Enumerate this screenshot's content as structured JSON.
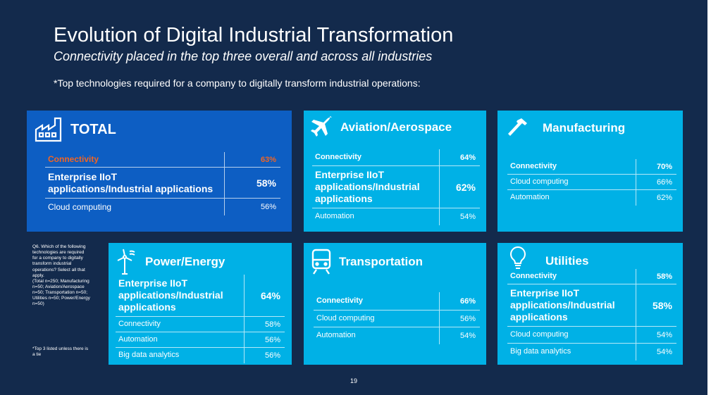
{
  "slide": {
    "title": "Evolution of Digital Industrial Transformation",
    "subtitle": "Connectivity placed in the top three overall and across all industries",
    "intro": "*Top technologies required for a company to digitally transform industrial operations:",
    "page_number": "19",
    "colors": {
      "background": "#132a4c",
      "card": "#00b1e6",
      "total_card": "#0d5ec3",
      "highlight": "#f26522"
    }
  },
  "footnote": {
    "text": "Q6. Which of the following technologies are required for a company to digitally transform industrial operations? Select all that apply.\n(Total n=250; Manufacturing n=50; Aviation/Aerospace n=50; Transportation n=50; Utilities n=50; Power/Energy n=50)",
    "tie_note": "*Top 3 listed unless there is a tie"
  },
  "cards": {
    "total": {
      "title": "TOTAL",
      "icon": "factory-icon",
      "rows": [
        {
          "name": "Connectivity",
          "value": "63%"
        },
        {
          "name": "Enterprise IIoT applications/Industrial applications",
          "value": "58%"
        },
        {
          "name": "Cloud computing",
          "value": "56%"
        }
      ]
    },
    "aviation": {
      "title": "Aviation/Aerospace",
      "icon": "airplane-icon",
      "rows": [
        {
          "name": "Connectivity",
          "value": "64%"
        },
        {
          "name": "Enterprise IIoT applications/Industrial applications",
          "value": "62%"
        },
        {
          "name": "Automation",
          "value": "54%"
        }
      ]
    },
    "manufacturing": {
      "title": "Manufacturing",
      "icon": "hammer-icon",
      "rows": [
        {
          "name": "Connectivity",
          "value": "70%"
        },
        {
          "name": "Cloud computing",
          "value": "66%"
        },
        {
          "name": "Automation",
          "value": "62%"
        }
      ]
    },
    "power": {
      "title": "Power/Energy",
      "icon": "wind-turbine-icon",
      "rows": [
        {
          "name": "Enterprise IIoT applications/Industrial applications",
          "value": "64%"
        },
        {
          "name": "Connectivity",
          "value": "58%"
        },
        {
          "name": "Automation",
          "value": "56%"
        },
        {
          "name": "Big data analytics",
          "value": "56%"
        }
      ]
    },
    "transportation": {
      "title": "Transportation",
      "icon": "train-icon",
      "rows": [
        {
          "name": "Connectivity",
          "value": "66%"
        },
        {
          "name": "Cloud computing",
          "value": "56%"
        },
        {
          "name": "Automation",
          "value": "54%"
        }
      ]
    },
    "utilities": {
      "title": "Utilities",
      "icon": "lightbulb-icon",
      "rows": [
        {
          "name": "Connectivity",
          "value": "58%"
        },
        {
          "name": "Enterprise IIoT applications/Industrial applications",
          "value": "58%"
        },
        {
          "name": "Cloud computing",
          "value": "54%"
        },
        {
          "name": "Big data analytics",
          "value": "54%"
        }
      ]
    }
  }
}
